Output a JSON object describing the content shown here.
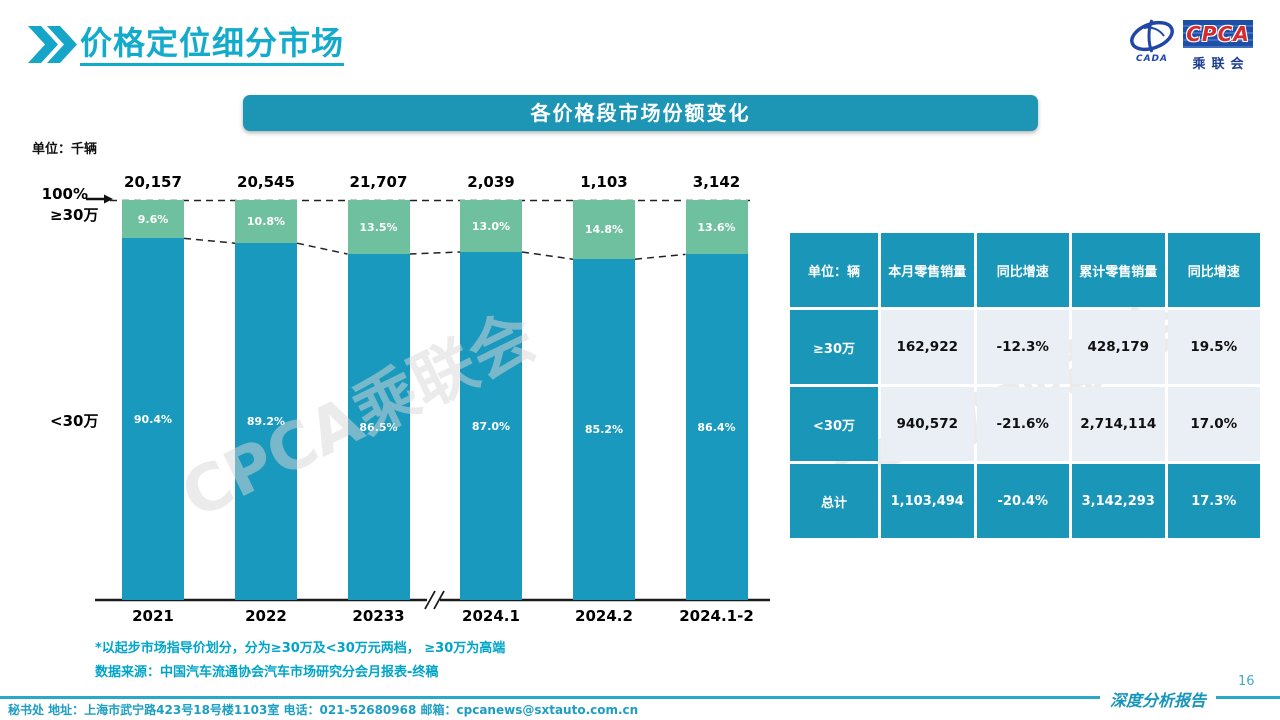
{
  "header": {
    "title": "价格定位细分市场"
  },
  "logo": {
    "cpca_text": "CPCA",
    "cn_text": "乘联会",
    "sub_text": "CADA"
  },
  "banner": {
    "title": "各价格段市场份额变化"
  },
  "chart_data": {
    "type": "stacked-bar-100",
    "title": "各价格段市场份额变化",
    "unit_label": "单位：千辆",
    "top_axis_label": "100%",
    "categories": [
      "2021",
      "2022",
      "20233",
      "2024.1",
      "2024.2",
      "2024.1-2"
    ],
    "totals": [
      "20,157",
      "20,545",
      "21,707",
      "2,039",
      "1,103",
      "3,142"
    ],
    "series": [
      {
        "name": "≥30万",
        "color": "#6fc09f",
        "values": [
          9.6,
          10.8,
          13.5,
          13.0,
          14.8,
          13.6
        ]
      },
      {
        "name": "<30万",
        "color": "#1899bd",
        "values": [
          90.4,
          89.2,
          86.5,
          87.0,
          85.2,
          86.4
        ]
      }
    ],
    "ylim": [
      0,
      100
    ],
    "value_suffix": "%",
    "axis_break_between": [
      "20233",
      "2024.1"
    ],
    "grid": false,
    "legend_position": "left-of-bars"
  },
  "sales_table": {
    "unit_header": "单位：辆",
    "col_headers": [
      "本月零售销量",
      "同比增速",
      "累计零售销量",
      "同比增速"
    ],
    "rows": [
      {
        "label": "≥30万",
        "monthly": "162,922",
        "monthly_yoy": "-12.3%",
        "cumulative": "428,179",
        "cumulative_yoy": "19.5%"
      },
      {
        "label": "<30万",
        "monthly": "940,572",
        "monthly_yoy": "-21.6%",
        "cumulative": "2,714,114",
        "cumulative_yoy": "17.0%"
      },
      {
        "label": "总计",
        "monthly": "1,103,494",
        "monthly_yoy": "-20.4%",
        "cumulative": "3,142,293",
        "cumulative_yoy": "17.3%"
      }
    ]
  },
  "notes": {
    "note1": "*以起步市场指导价划分，分为≥30万及<30万元两档， ≥30万为高端",
    "note2": "数据来源：中国汽车流通协会汽车市场研究分会月报表-终稿"
  },
  "watermark": {
    "text": "CPCA乘联会"
  },
  "footer": {
    "secretariat_line": "秘书处   地址：上海市武宁路423号18号楼1103室   电话：021-52680968   邮箱：cpcanews@sxtauto.com.cn",
    "report_label": "深度分析报告",
    "page_number": "16"
  },
  "colors": {
    "accent_teal": "#1996b8",
    "bar_teal": "#1899bd",
    "bar_green": "#6fc09f",
    "title_cyan": "#12abcb",
    "table_cell_bg": "#e9eff5",
    "logo_blue": "#1d4fa6",
    "logo_red": "#d42b2e"
  }
}
